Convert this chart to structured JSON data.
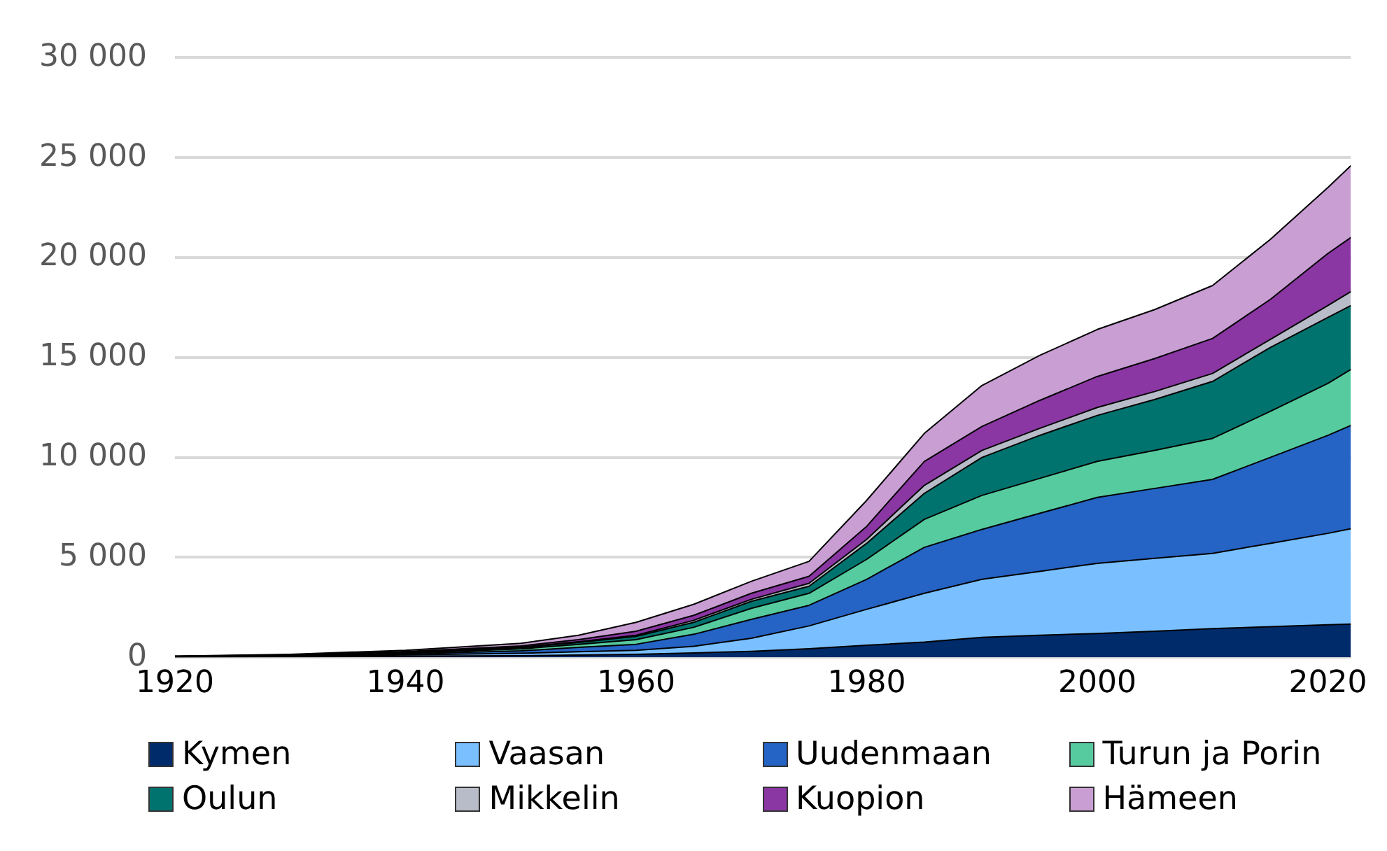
{
  "chart_data": {
    "type": "area",
    "stacked": true,
    "x": [
      1920,
      1930,
      1940,
      1950,
      1955,
      1960,
      1965,
      1970,
      1975,
      1980,
      1985,
      1990,
      1995,
      2000,
      2005,
      2010,
      2015,
      2020,
      2022
    ],
    "series": [
      {
        "name": "Kymen",
        "color": "#002b6b",
        "values": [
          10,
          25,
          60,
          80,
          110,
          150,
          220,
          300,
          430,
          600,
          760,
          1000,
          1100,
          1190,
          1300,
          1430,
          1530,
          1630,
          1660
        ]
      },
      {
        "name": "Vaasan",
        "color": "#7abfff",
        "values": [
          10,
          25,
          60,
          120,
          170,
          200,
          330,
          650,
          1140,
          1800,
          2440,
          2900,
          3200,
          3510,
          3650,
          3770,
          4170,
          4570,
          4770
        ]
      },
      {
        "name": "Uudenmaan",
        "color": "#2563c4",
        "values": [
          10,
          20,
          50,
          120,
          220,
          300,
          600,
          950,
          1030,
          1500,
          2300,
          2500,
          2900,
          3300,
          3500,
          3700,
          4300,
          4900,
          5170
        ]
      },
      {
        "name": "Turun ja Porin",
        "color": "#57cba0",
        "values": [
          10,
          20,
          40,
          100,
          150,
          230,
          350,
          550,
          600,
          1000,
          1400,
          1700,
          1750,
          1800,
          1900,
          2050,
          2300,
          2600,
          2800
        ]
      },
      {
        "name": "Oulun",
        "color": "#00736e",
        "values": [
          5,
          10,
          30,
          60,
          90,
          170,
          250,
          350,
          350,
          800,
          1300,
          1900,
          2150,
          2300,
          2550,
          2850,
          3200,
          3300,
          3200
        ]
      },
      {
        "name": "Mikkelin",
        "color": "#b8bcc8",
        "values": [
          3,
          8,
          20,
          30,
          40,
          50,
          100,
          100,
          150,
          200,
          400,
          350,
          350,
          400,
          400,
          400,
          400,
          600,
          700
        ]
      },
      {
        "name": "Kuopion",
        "color": "#8a36a3",
        "values": [
          4,
          12,
          30,
          60,
          100,
          200,
          250,
          300,
          350,
          650,
          1200,
          1200,
          1400,
          1550,
          1650,
          1750,
          2000,
          2600,
          2700
        ]
      },
      {
        "name": "Hämeen",
        "color": "#c99ed3",
        "values": [
          8,
          30,
          60,
          130,
          220,
          450,
          550,
          600,
          750,
          1300,
          1400,
          2050,
          2250,
          2350,
          2450,
          2650,
          3000,
          3300,
          3600
        ]
      }
    ],
    "xlim": [
      1920,
      2022
    ],
    "xticks": [
      1920,
      1940,
      1960,
      1980,
      2000,
      2020
    ],
    "ylim": [
      0,
      30000
    ],
    "yticks": [
      {
        "value": 0,
        "label": "0"
      },
      {
        "value": 5000,
        "label": "5 000"
      },
      {
        "value": 10000,
        "label": "10 000"
      },
      {
        "value": 15000,
        "label": "15 000"
      },
      {
        "value": 20000,
        "label": "20 000"
      },
      {
        "value": 25000,
        "label": "25 000"
      },
      {
        "value": 30000,
        "label": "30 000"
      }
    ],
    "grid": "y",
    "legend": "bottom"
  }
}
